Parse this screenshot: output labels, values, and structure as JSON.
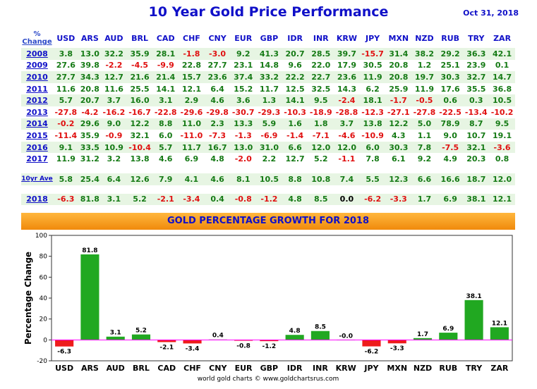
{
  "header": {
    "title": "10 Year Gold Price Performance",
    "date": "Oct 31, 2018",
    "corner_line1": "%",
    "corner_line2": "Change"
  },
  "currencies": [
    "USD",
    "ARS",
    "AUD",
    "BRL",
    "CAD",
    "CHF",
    "CNY",
    "EUR",
    "GBP",
    "IDR",
    "INR",
    "KRW",
    "JPY",
    "MXN",
    "NZD",
    "RUB",
    "TRY",
    "ZAR"
  ],
  "table": {
    "rows": [
      {
        "year": "2008",
        "values": [
          "3.8",
          "13.0",
          "32.2",
          "35.9",
          "28.1",
          "-1.8",
          "-3.0",
          "9.2",
          "41.3",
          "20.7",
          "28.5",
          "39.7",
          "-15.7",
          "31.4",
          "38.2",
          "29.2",
          "36.3",
          "42.1"
        ]
      },
      {
        "year": "2009",
        "values": [
          "27.6",
          "39.8",
          "-2.2",
          "-4.5",
          "-9.9",
          "22.8",
          "27.7",
          "23.1",
          "14.8",
          "9.6",
          "22.0",
          "17.9",
          "30.5",
          "20.8",
          "1.2",
          "25.1",
          "23.9",
          "0.1"
        ]
      },
      {
        "year": "2010",
        "values": [
          "27.7",
          "34.3",
          "12.7",
          "21.6",
          "21.4",
          "15.7",
          "23.6",
          "37.4",
          "33.2",
          "22.2",
          "22.7",
          "23.6",
          "11.9",
          "20.8",
          "19.7",
          "30.3",
          "32.7",
          "14.7"
        ]
      },
      {
        "year": "2011",
        "values": [
          "11.6",
          "20.8",
          "11.6",
          "25.5",
          "14.1",
          "12.1",
          "6.4",
          "15.2",
          "11.7",
          "12.5",
          "32.5",
          "14.3",
          "6.2",
          "25.9",
          "11.9",
          "17.6",
          "35.5",
          "36.8"
        ]
      },
      {
        "year": "2012",
        "values": [
          "5.7",
          "20.7",
          "3.7",
          "16.0",
          "3.1",
          "2.9",
          "4.6",
          "3.6",
          "1.3",
          "14.1",
          "9.5",
          "-2.4",
          "18.1",
          "-1.7",
          "-0.5",
          "0.6",
          "0.3",
          "10.5"
        ]
      },
      {
        "year": "2013",
        "values": [
          "-27.8",
          "-4.2",
          "-16.2",
          "-16.7",
          "-22.8",
          "-29.6",
          "-29.8",
          "-30.7",
          "-29.3",
          "-10.3",
          "-18.9",
          "-28.8",
          "-12.3",
          "-27.1",
          "-27.8",
          "-22.5",
          "-13.4",
          "-10.2"
        ]
      },
      {
        "year": "2014",
        "values": [
          "-0.2",
          "29.6",
          "9.0",
          "12.2",
          "8.8",
          "11.0",
          "2.3",
          "13.3",
          "5.9",
          "1.6",
          "1.8",
          "3.7",
          "13.8",
          "12.2",
          "5.0",
          "78.9",
          "8.7",
          "9.5"
        ]
      },
      {
        "year": "2015",
        "values": [
          "-11.4",
          "35.9",
          "-0.9",
          "32.1",
          "6.0",
          "-11.0",
          "-7.3",
          "-1.3",
          "-6.9",
          "-1.4",
          "-7.1",
          "-4.6",
          "-10.9",
          "4.3",
          "1.1",
          "9.0",
          "10.7",
          "19.1"
        ]
      },
      {
        "year": "2016",
        "values": [
          "9.1",
          "33.5",
          "10.9",
          "-10.4",
          "5.7",
          "11.7",
          "16.7",
          "13.0",
          "31.0",
          "6.6",
          "12.0",
          "12.0",
          "6.0",
          "30.3",
          "7.8",
          "-7.5",
          "32.1",
          "-3.6"
        ]
      },
      {
        "year": "2017",
        "values": [
          "11.9",
          "31.2",
          "3.2",
          "13.8",
          "4.6",
          "6.9",
          "4.8",
          "-2.0",
          "2.2",
          "12.7",
          "5.2",
          "-1.1",
          "7.8",
          "6.1",
          "9.2",
          "4.9",
          "20.3",
          "0.8"
        ]
      }
    ],
    "average": {
      "label": "10yr Ave",
      "values": [
        "5.8",
        "25.4",
        "6.4",
        "12.6",
        "7.9",
        "4.1",
        "4.6",
        "8.1",
        "10.5",
        "8.8",
        "10.8",
        "7.4",
        "5.5",
        "12.3",
        "6.6",
        "16.6",
        "18.7",
        "12.0"
      ]
    },
    "current": {
      "year": "2018",
      "values": [
        "-6.3",
        "81.8",
        "3.1",
        "5.2",
        "-2.1",
        "-3.4",
        "0.4",
        "-0.8",
        "-1.2",
        "4.8",
        "8.5",
        "0.0",
        "-6.2",
        "-3.3",
        "1.7",
        "6.9",
        "38.1",
        "12.1"
      ]
    }
  },
  "colors": {
    "positive": "#21a821",
    "negative": "#ee1c1c",
    "title": "#1010c8",
    "zero_line": "#ff00ff"
  },
  "chart_data": {
    "type": "bar",
    "title": "GOLD PERCENTAGE GROWTH FOR 2018",
    "categories": [
      "USD",
      "ARS",
      "AUD",
      "BRL",
      "CAD",
      "CHF",
      "CNY",
      "EUR",
      "GBP",
      "IDR",
      "INR",
      "KRW",
      "JPY",
      "MXN",
      "NZD",
      "RUB",
      "TRY",
      "ZAR"
    ],
    "values": [
      -6.3,
      81.8,
      3.1,
      5.2,
      -2.1,
      -3.4,
      0.4,
      -0.8,
      -1.2,
      4.8,
      8.5,
      0.0,
      -6.2,
      -3.3,
      1.7,
      6.9,
      38.1,
      12.1
    ],
    "value_labels": [
      "-6.3",
      "81.8",
      "3.1",
      "5.2",
      "-2.1",
      "-3.4",
      "0.4",
      "-0.8",
      "-1.2",
      "4.8",
      "8.5",
      "-0.0",
      "-6.2",
      "-3.3",
      "1.7",
      "6.9",
      "38.1",
      "12.1"
    ],
    "xlabel": "",
    "ylabel": "Percentage Change",
    "ylim": [
      -20,
      100
    ],
    "yticks": [
      "-20",
      "0",
      "20",
      "40",
      "60",
      "80",
      "100"
    ],
    "footer": "world gold charts © www.goldchartsrus.com"
  }
}
